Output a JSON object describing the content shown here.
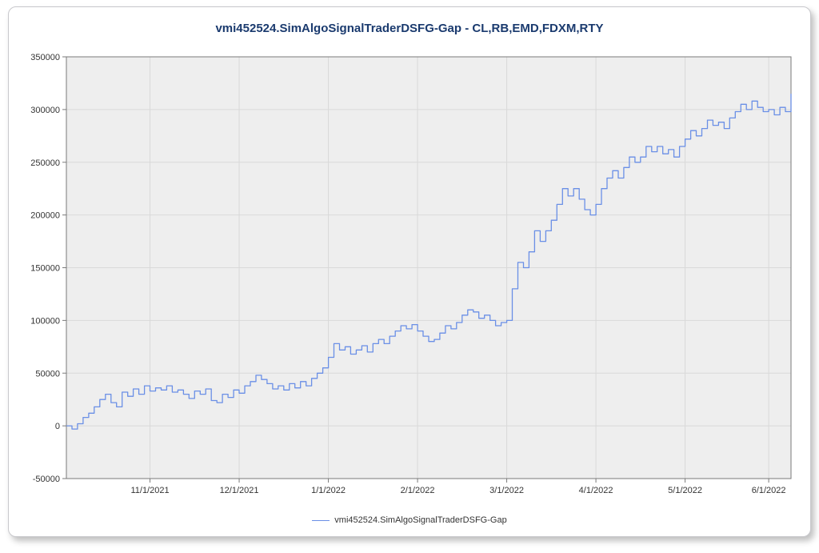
{
  "title": "vmi452524.SimAlgoSignalTraderDSFG-Gap - CL,RB,EMD,FDXM,RTY",
  "legend_label": "vmi452524.SimAlgoSignalTraderDSFG-Gap",
  "chart": {
    "type": "line",
    "background_color": "#eeeeee",
    "grid_color": "#d9d9d9",
    "axis_color": "#7a7a7a",
    "line_color": "#6a8fe6",
    "line_width": 1.3,
    "title_color": "#1a3a6e",
    "title_fontsize": 15,
    "tick_fontsize": 11,
    "x_domain": [
      0,
      260
    ],
    "ylim": [
      -50000,
      350000
    ],
    "ytick_step": 50000,
    "yticks": [
      -50000,
      0,
      50000,
      100000,
      150000,
      200000,
      250000,
      300000,
      350000
    ],
    "xticks": [
      {
        "x": 30,
        "label": "11/1/2021"
      },
      {
        "x": 62,
        "label": "12/1/2021"
      },
      {
        "x": 94,
        "label": "1/1/2022"
      },
      {
        "x": 126,
        "label": "2/1/2022"
      },
      {
        "x": 158,
        "label": "3/1/2022"
      },
      {
        "x": 190,
        "label": "4/1/2022"
      },
      {
        "x": 222,
        "label": "5/1/2022"
      },
      {
        "x": 252,
        "label": "6/1/2022"
      }
    ],
    "series": [
      {
        "x": 0,
        "y": 0
      },
      {
        "x": 2,
        "y": -3000
      },
      {
        "x": 4,
        "y": 2000
      },
      {
        "x": 6,
        "y": 8000
      },
      {
        "x": 8,
        "y": 12000
      },
      {
        "x": 10,
        "y": 18000
      },
      {
        "x": 12,
        "y": 25000
      },
      {
        "x": 14,
        "y": 30000
      },
      {
        "x": 16,
        "y": 22000
      },
      {
        "x": 18,
        "y": 18000
      },
      {
        "x": 20,
        "y": 32000
      },
      {
        "x": 22,
        "y": 28000
      },
      {
        "x": 24,
        "y": 35000
      },
      {
        "x": 26,
        "y": 30000
      },
      {
        "x": 28,
        "y": 38000
      },
      {
        "x": 30,
        "y": 33000
      },
      {
        "x": 32,
        "y": 36000
      },
      {
        "x": 34,
        "y": 34000
      },
      {
        "x": 36,
        "y": 38000
      },
      {
        "x": 38,
        "y": 32000
      },
      {
        "x": 40,
        "y": 34000
      },
      {
        "x": 42,
        "y": 30000
      },
      {
        "x": 44,
        "y": 26000
      },
      {
        "x": 46,
        "y": 33000
      },
      {
        "x": 48,
        "y": 30000
      },
      {
        "x": 50,
        "y": 35000
      },
      {
        "x": 52,
        "y": 24000
      },
      {
        "x": 54,
        "y": 22000
      },
      {
        "x": 56,
        "y": 30000
      },
      {
        "x": 58,
        "y": 27000
      },
      {
        "x": 60,
        "y": 34000
      },
      {
        "x": 62,
        "y": 31000
      },
      {
        "x": 64,
        "y": 38000
      },
      {
        "x": 66,
        "y": 42000
      },
      {
        "x": 68,
        "y": 48000
      },
      {
        "x": 70,
        "y": 44000
      },
      {
        "x": 72,
        "y": 40000
      },
      {
        "x": 74,
        "y": 35000
      },
      {
        "x": 76,
        "y": 38000
      },
      {
        "x": 78,
        "y": 34000
      },
      {
        "x": 80,
        "y": 40000
      },
      {
        "x": 82,
        "y": 36000
      },
      {
        "x": 84,
        "y": 42000
      },
      {
        "x": 86,
        "y": 38000
      },
      {
        "x": 88,
        "y": 45000
      },
      {
        "x": 90,
        "y": 50000
      },
      {
        "x": 92,
        "y": 55000
      },
      {
        "x": 94,
        "y": 65000
      },
      {
        "x": 96,
        "y": 78000
      },
      {
        "x": 98,
        "y": 72000
      },
      {
        "x": 100,
        "y": 75000
      },
      {
        "x": 102,
        "y": 68000
      },
      {
        "x": 104,
        "y": 72000
      },
      {
        "x": 106,
        "y": 76000
      },
      {
        "x": 108,
        "y": 70000
      },
      {
        "x": 110,
        "y": 78000
      },
      {
        "x": 112,
        "y": 82000
      },
      {
        "x": 114,
        "y": 78000
      },
      {
        "x": 116,
        "y": 85000
      },
      {
        "x": 118,
        "y": 90000
      },
      {
        "x": 120,
        "y": 95000
      },
      {
        "x": 122,
        "y": 92000
      },
      {
        "x": 124,
        "y": 96000
      },
      {
        "x": 126,
        "y": 90000
      },
      {
        "x": 128,
        "y": 85000
      },
      {
        "x": 130,
        "y": 80000
      },
      {
        "x": 132,
        "y": 82000
      },
      {
        "x": 134,
        "y": 88000
      },
      {
        "x": 136,
        "y": 95000
      },
      {
        "x": 138,
        "y": 92000
      },
      {
        "x": 140,
        "y": 98000
      },
      {
        "x": 142,
        "y": 105000
      },
      {
        "x": 144,
        "y": 110000
      },
      {
        "x": 146,
        "y": 108000
      },
      {
        "x": 148,
        "y": 102000
      },
      {
        "x": 150,
        "y": 105000
      },
      {
        "x": 152,
        "y": 100000
      },
      {
        "x": 154,
        "y": 95000
      },
      {
        "x": 156,
        "y": 98000
      },
      {
        "x": 158,
        "y": 100000
      },
      {
        "x": 160,
        "y": 130000
      },
      {
        "x": 162,
        "y": 155000
      },
      {
        "x": 164,
        "y": 150000
      },
      {
        "x": 166,
        "y": 165000
      },
      {
        "x": 168,
        "y": 185000
      },
      {
        "x": 170,
        "y": 175000
      },
      {
        "x": 172,
        "y": 185000
      },
      {
        "x": 174,
        "y": 195000
      },
      {
        "x": 176,
        "y": 210000
      },
      {
        "x": 178,
        "y": 225000
      },
      {
        "x": 180,
        "y": 218000
      },
      {
        "x": 182,
        "y": 225000
      },
      {
        "x": 184,
        "y": 215000
      },
      {
        "x": 186,
        "y": 205000
      },
      {
        "x": 188,
        "y": 200000
      },
      {
        "x": 190,
        "y": 210000
      },
      {
        "x": 192,
        "y": 225000
      },
      {
        "x": 194,
        "y": 235000
      },
      {
        "x": 196,
        "y": 242000
      },
      {
        "x": 198,
        "y": 235000
      },
      {
        "x": 200,
        "y": 245000
      },
      {
        "x": 202,
        "y": 255000
      },
      {
        "x": 204,
        "y": 250000
      },
      {
        "x": 206,
        "y": 255000
      },
      {
        "x": 208,
        "y": 265000
      },
      {
        "x": 210,
        "y": 260000
      },
      {
        "x": 212,
        "y": 265000
      },
      {
        "x": 214,
        "y": 258000
      },
      {
        "x": 216,
        "y": 262000
      },
      {
        "x": 218,
        "y": 255000
      },
      {
        "x": 220,
        "y": 265000
      },
      {
        "x": 222,
        "y": 272000
      },
      {
        "x": 224,
        "y": 280000
      },
      {
        "x": 226,
        "y": 275000
      },
      {
        "x": 228,
        "y": 282000
      },
      {
        "x": 230,
        "y": 290000
      },
      {
        "x": 232,
        "y": 285000
      },
      {
        "x": 234,
        "y": 288000
      },
      {
        "x": 236,
        "y": 282000
      },
      {
        "x": 238,
        "y": 292000
      },
      {
        "x": 240,
        "y": 298000
      },
      {
        "x": 242,
        "y": 305000
      },
      {
        "x": 244,
        "y": 300000
      },
      {
        "x": 246,
        "y": 308000
      },
      {
        "x": 248,
        "y": 302000
      },
      {
        "x": 250,
        "y": 298000
      },
      {
        "x": 252,
        "y": 300000
      },
      {
        "x": 254,
        "y": 295000
      },
      {
        "x": 256,
        "y": 302000
      },
      {
        "x": 258,
        "y": 298000
      },
      {
        "x": 260,
        "y": 315000
      }
    ]
  }
}
